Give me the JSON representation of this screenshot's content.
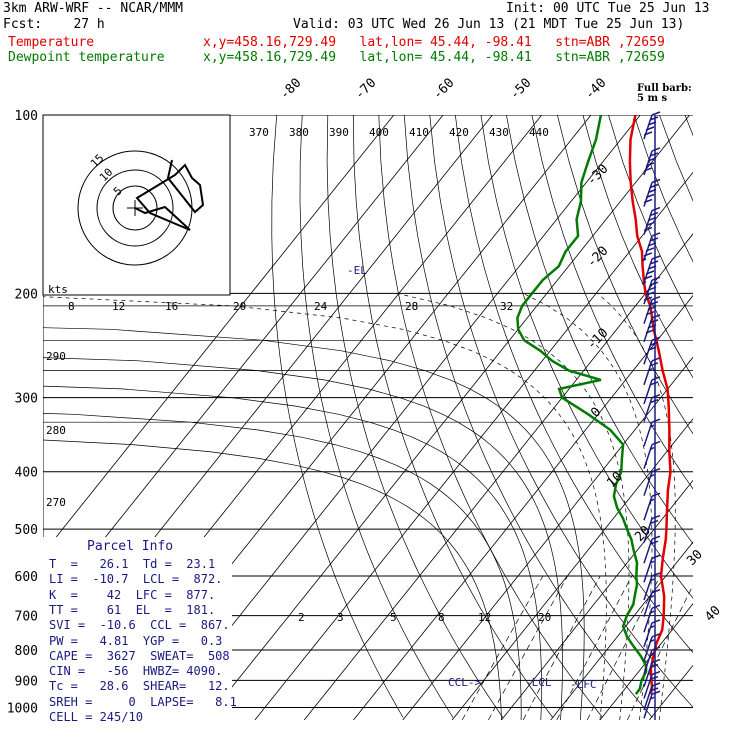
{
  "header": {
    "model": "3km ARW-WRF -- NCAR/MMM",
    "init": "Init: 00 UTC Tue 25 Jun 13",
    "fcst": "Fcst:    27 h",
    "valid": "Valid: 03 UTC Wed 26 Jun 13 (21 MDT Tue 25 Jun 13)",
    "temp_label": "Temperature",
    "dew_label": "Dewpoint temperature",
    "temp_loc": "x,y=458.16,729.49   lat,lon= 45.44, -98.41   stn=ABR ,72659",
    "dew_loc": "x,y=458.16,729.49   lat,lon= 45.44, -98.41   stn=ABR ,72659"
  },
  "colors": {
    "temperature": "#e00000",
    "dewpoint": "#007a00",
    "parcel_text": "#1a1a80",
    "barbs": "#1a1a80"
  },
  "parcel": {
    "title": "Parcel Info",
    "rows": [
      "T  =   26.1  Td =  23.1",
      "LI =  -10.7  LCL =  872.",
      "K  =    42  LFC =  877.",
      "TT =    61  EL  =  181.",
      "SVI =  -10.6  CCL =  867.",
      "PW =   4.81  YGP =   0.3",
      "CAPE =  3627  SWEAT=  508",
      "CIN =   -56  HWBZ= 4090.",
      "Tc =   28.6  SHEAR=   12.",
      "SREH =     0  LAPSE=   8.1",
      "CELL = 245/10"
    ]
  },
  "barb_title": "Full barb:\n5 m s",
  "chart_data": {
    "type": "line",
    "title": "",
    "xlabel": "",
    "ylabel": "",
    "pressure_ticks": [
      "100",
      "200",
      "300",
      "400",
      "500",
      "600",
      "700",
      "800",
      "900",
      "1000"
    ],
    "pressure_values": [
      100,
      200,
      300,
      400,
      500,
      600,
      700,
      800,
      900,
      1000
    ],
    "temp_ticks_top": [
      "-80",
      "-70",
      "-60",
      "-50",
      "-40"
    ],
    "temp_ticks_right": [
      "-30",
      "-20",
      "-10",
      "0",
      "10",
      "20",
      "30",
      "40"
    ],
    "theta_labels": [
      "370",
      "380",
      "390",
      "400",
      "410",
      "420",
      "430",
      "440"
    ],
    "upper_theta_labels": [
      "290",
      "280",
      "270"
    ],
    "wind_speed_labels": [
      "kts",
      "8",
      "12",
      "16",
      "20",
      "24",
      "28",
      "32"
    ],
    "mixing_ratio_labels": [
      "2",
      "3",
      "5",
      "8",
      "12",
      "20"
    ],
    "level_labels": [
      "-EL",
      "CCL->",
      "-LCL",
      "-LFC"
    ],
    "hodograph_ring_labels": [
      "15",
      "10",
      "5"
    ],
    "series": [
      {
        "name": "Temperature",
        "pressure": [
          950,
          930,
          900,
          860,
          820,
          780,
          740,
          700,
          650,
          600,
          560,
          520,
          500,
          470,
          430,
          400,
          370,
          340,
          310,
          290,
          270,
          250,
          230,
          210,
          200,
          190,
          180,
          170,
          160,
          150,
          140,
          130,
          120,
          110,
          100
        ],
        "temperature": [
          26.1,
          25.5,
          24,
          22,
          20.5,
          19,
          18,
          16,
          13,
          9,
          6.5,
          4,
          2.5,
          0,
          -3.5,
          -6,
          -9.5,
          -13,
          -17,
          -20,
          -24,
          -28,
          -32.5,
          -37,
          -40,
          -42.5,
          -45,
          -47.5,
          -51,
          -54,
          -57.5,
          -61,
          -64.5,
          -68,
          -71
        ]
      },
      {
        "name": "Dewpoint temperature",
        "pressure": [
          950,
          930,
          900,
          870,
          850,
          820,
          790,
          760,
          730,
          700,
          670,
          650,
          620,
          600,
          570,
          540,
          520,
          500,
          480,
          460,
          440,
          420,
          400,
          380,
          360,
          340,
          320,
          300,
          290,
          280,
          270,
          260,
          250,
          240,
          230,
          220,
          210,
          200,
          190,
          180,
          170,
          160,
          150,
          140,
          130,
          120,
          110,
          100
        ],
        "dewpoint": [
          23.1,
          23,
          22,
          21.5,
          20.5,
          18,
          15,
          12,
          9.5,
          8.5,
          8,
          7,
          5.5,
          4,
          2,
          -1,
          -3,
          -5.5,
          -8,
          -11,
          -13.5,
          -15,
          -16,
          -18,
          -20,
          -25,
          -32,
          -40,
          -42,
          -35,
          -43,
          -48,
          -52,
          -57,
          -60,
          -62,
          -63,
          -63,
          -63,
          -62,
          -63,
          -63,
          -66,
          -68,
          -71,
          -73,
          -75,
          -78
        ]
      }
    ],
    "wind_barbs": [
      {
        "pressure": 100,
        "speed_kt": 50,
        "dir": 270
      },
      {
        "pressure": 115,
        "speed_kt": 50,
        "dir": 270
      },
      {
        "pressure": 130,
        "speed_kt": 50,
        "dir": 270
      },
      {
        "pressure": 145,
        "speed_kt": 50,
        "dir": 270
      },
      {
        "pressure": 160,
        "speed_kt": 55,
        "dir": 270
      },
      {
        "pressure": 175,
        "speed_kt": 55,
        "dir": 270
      },
      {
        "pressure": 190,
        "speed_kt": 50,
        "dir": 270
      },
      {
        "pressure": 205,
        "speed_kt": 40,
        "dir": 270
      },
      {
        "pressure": 220,
        "speed_kt": 40,
        "dir": 270
      },
      {
        "pressure": 240,
        "speed_kt": 30,
        "dir": 270
      },
      {
        "pressure": 260,
        "speed_kt": 25,
        "dir": 270
      },
      {
        "pressure": 280,
        "speed_kt": 20,
        "dir": 270
      },
      {
        "pressure": 300,
        "speed_kt": 20,
        "dir": 270
      },
      {
        "pressure": 330,
        "speed_kt": 15,
        "dir": 270
      },
      {
        "pressure": 360,
        "speed_kt": 15,
        "dir": 270
      },
      {
        "pressure": 400,
        "speed_kt": 15,
        "dir": 270
      },
      {
        "pressure": 440,
        "speed_kt": 15,
        "dir": 280
      },
      {
        "pressure": 480,
        "speed_kt": 20,
        "dir": 280
      },
      {
        "pressure": 520,
        "speed_kt": 20,
        "dir": 280
      },
      {
        "pressure": 560,
        "speed_kt": 15,
        "dir": 280
      },
      {
        "pressure": 600,
        "speed_kt": 15,
        "dir": 280
      },
      {
        "pressure": 640,
        "speed_kt": 15,
        "dir": 280
      },
      {
        "pressure": 680,
        "speed_kt": 15,
        "dir": 280
      },
      {
        "pressure": 720,
        "speed_kt": 15,
        "dir": 280
      },
      {
        "pressure": 760,
        "speed_kt": 15,
        "dir": 270
      },
      {
        "pressure": 800,
        "speed_kt": 15,
        "dir": 270
      },
      {
        "pressure": 840,
        "speed_kt": 20,
        "dir": 260
      },
      {
        "pressure": 880,
        "speed_kt": 20,
        "dir": 260
      },
      {
        "pressure": 920,
        "speed_kt": 20,
        "dir": 250
      },
      {
        "pressure": 950,
        "speed_kt": 15,
        "dir": 250
      }
    ]
  }
}
